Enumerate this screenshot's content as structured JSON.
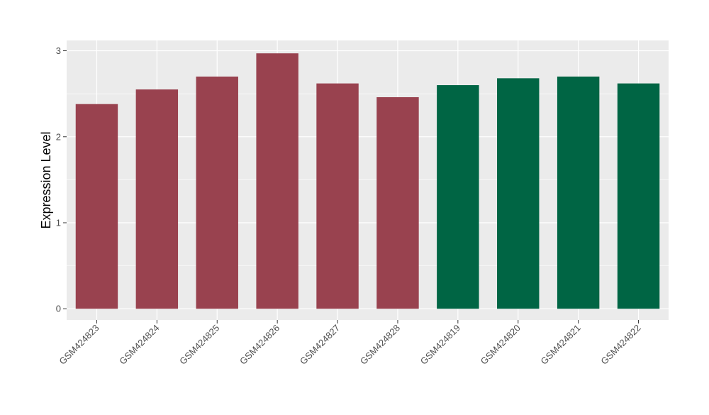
{
  "chart_data": {
    "type": "bar",
    "ylabel": "Expression Level",
    "ylim": [
      -0.13,
      3.12
    ],
    "yticks": [
      0,
      1,
      2,
      3
    ],
    "grid": true,
    "categories": [
      "GSM424823",
      "GSM424824",
      "GSM424825",
      "GSM424826",
      "GSM424827",
      "GSM424828",
      "GSM424819",
      "GSM424820",
      "GSM424821",
      "GSM424822"
    ],
    "values": [
      2.38,
      2.55,
      2.7,
      2.97,
      2.62,
      2.46,
      2.6,
      2.68,
      2.7,
      2.62
    ],
    "bar_colors": [
      "#99424F",
      "#99424F",
      "#99424F",
      "#99424F",
      "#99424F",
      "#99424F",
      "#006544",
      "#006544",
      "#006544",
      "#006544"
    ],
    "panel_background": "#EBEBEB",
    "gridline_color": "#FFFFFF"
  }
}
